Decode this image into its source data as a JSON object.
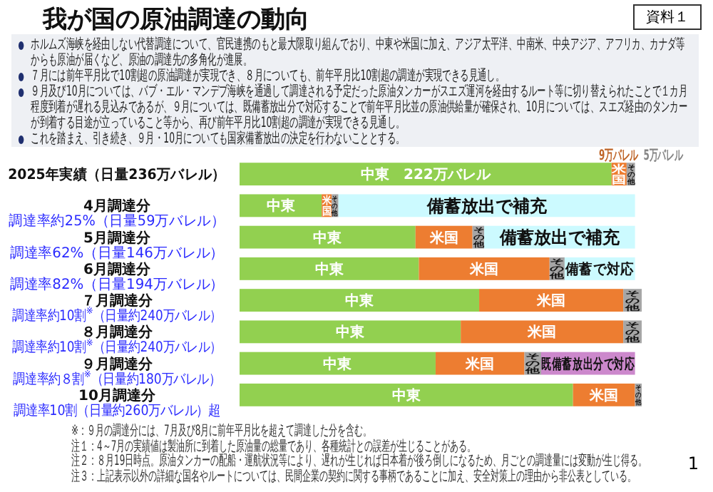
{
  "chart_data": {
    "type": "bar",
    "orientation": "horizontal",
    "stacked": true,
    "title": "我が国の原油調達の動向",
    "xlim": [
      0,
      240
    ],
    "categories": [
      "2025年実績（日量236万バレル）",
      "4月調達分",
      "5月調達分",
      "6月調達分",
      "７月調達分",
      "８月調達分",
      "９月調達分",
      "10月調達分"
    ],
    "series": [
      {
        "color": "#92d050",
        "values": [
          222,
          49,
          105,
          107,
          143,
          132,
          117,
          199
        ],
        "value_labels": [
          "中東　222万バレル",
          "中東",
          "中東",
          "中東",
          "中東",
          "中東",
          "中東",
          "中東"
        ]
      },
      {
        "color": "#ed7d31",
        "values": [
          9,
          6,
          34,
          78,
          86,
          97,
          53,
          37
        ],
        "value_labels": [
          "米国",
          "米国",
          "米国",
          "米国",
          "米国",
          "米国",
          "米国",
          "米国"
        ]
      },
      {
        "color": "#a6a6a6",
        "values": [
          5,
          4,
          7,
          9,
          11,
          11,
          10,
          4
        ],
        "value_labels": [
          "その他",
          "その他",
          "その他",
          "その他",
          "その他",
          "その他",
          "その他",
          "その他"
        ]
      },
      {
        "colors": [
          null,
          "#ccfaff",
          "#ccfaff",
          "#ccfaff",
          null,
          null,
          "#cc88cc",
          null
        ],
        "values": [
          null,
          177,
          90,
          42,
          null,
          null,
          56,
          null
        ],
        "value_labels": [
          null,
          "備蓄放出で補充",
          "備蓄放出で補充",
          "備蓄で対応",
          null,
          null,
          "既備蓄放出分で対応",
          null
        ]
      }
    ],
    "annotations": [
      "資料１",
      "ホルムズ海峡を経由しない代替調達について、官民連携のもと最大限取り組んでおり、中東や米国に加え、アジア太平洋、中南米、中央アジア、アフリカ、カナダ等からも原油が届くなど、原油の調達先の多角化が進展。",
      "７月には前年平月比で10割超の原油調達が実現でき、８月についても、前年平月比10割超の調達が実現できる見通し。",
      "９月及び10月については、バブ・エル・マンデブ海峡を通過して調達される予定だった原油タンカーがスエズ運河を経由するルート等に切り替えられたことで１カ月程度到着が遅れる見込みであるが、９月については、既備蓄放出分で対応することで前年平月比並の原油供給量が確保され、10月については、スエズ経由のタンカーが到着する目途が立っていること等から、再び前年平月比10割超の調達が実現できる見通し。",
      "これを踏まえ、引き続き、９月・10月についても国家備蓄放出の決定を行わないこととする。",
      "調達率約25%（日量59万バレル）",
      "調達率62%（日量146万バレル）",
      "調達率82%（日量194万バレル）",
      "調達率約10割$^{※}$（日量約240万バレル）",
      "調達率約10割$^{※}$（日量約240万バレル）",
      "調達率約８割$^{※}$（日量約180万バレル）",
      "調達率10割（日量約260万バレル）超",
      "※：９月の調達分には、7月及び8月に前年平月比を超えて調達した分を含む。",
      "注１：4～7月の実績値は製油所に到着した原油量の総量であり、各種統計との誤差が生じることがある。",
      "注２：８月19日時点。原油タンカーの配船・運航状況等により、遅れが生じれば日本着が後ろ倒しになるため、月ごとの調達量には変動が生じ得る。",
      "注３：上記表示以外の詳細な国名やルートについては、民間企業の契約に関する事柄であることに加え、安全対策上の理由から非公表としている。",
      "1",
      {
        "text": "9万バレル",
        "x": 226.5,
        "y": "2025年実績（日量236万バレル）"
      },
      {
        "text": "5万バレル",
        "x": 233.5,
        "y": "2025年実績（日量236万バレル）"
      }
    ]
  }
}
